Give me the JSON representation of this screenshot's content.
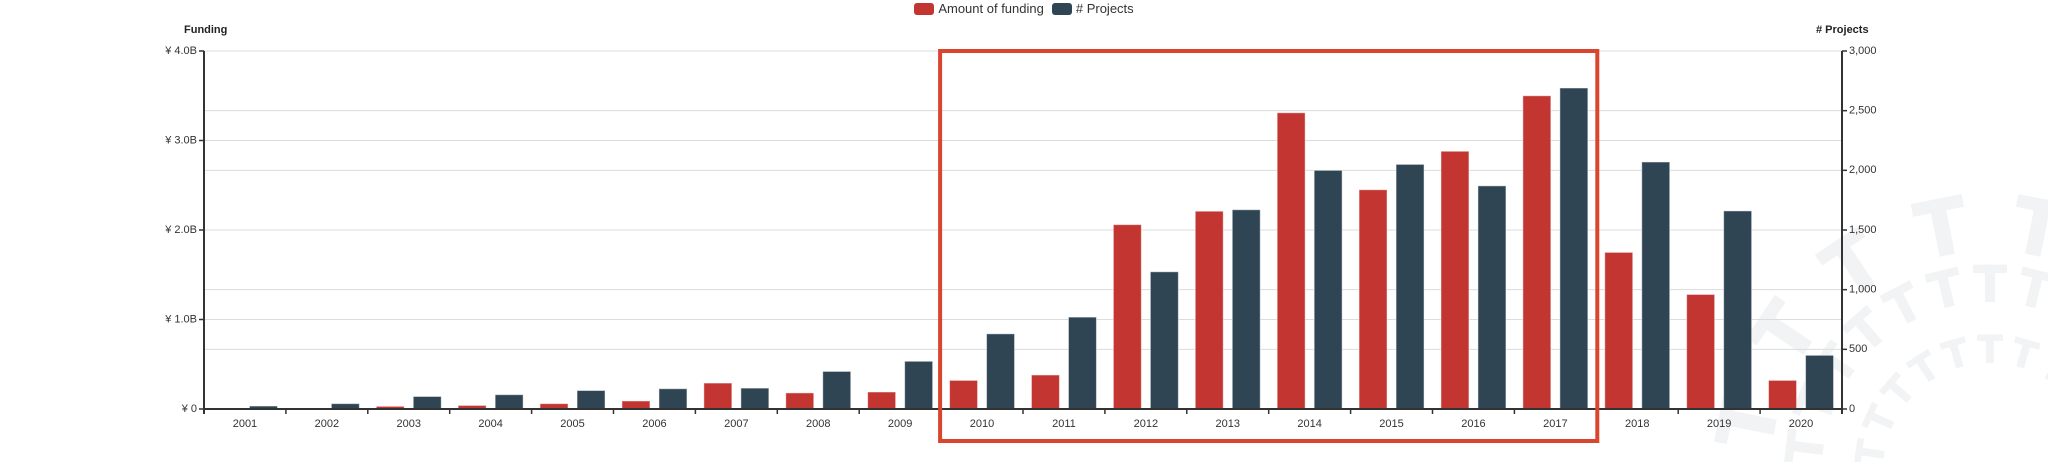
{
  "chart_data": {
    "type": "bar",
    "title": "",
    "categories": [
      "2001",
      "2002",
      "2003",
      "2004",
      "2005",
      "2006",
      "2007",
      "2008",
      "2009",
      "2010",
      "2011",
      "2012",
      "2013",
      "2014",
      "2015",
      "2016",
      "2017",
      "2018",
      "2019",
      "2020"
    ],
    "series": [
      {
        "name": "Amount of funding",
        "axis": "left",
        "color": "#c23531",
        "unit": "¥ billion",
        "values": [
          0.01,
          0.01,
          0.03,
          0.04,
          0.06,
          0.09,
          0.29,
          0.18,
          0.19,
          0.32,
          0.38,
          2.06,
          2.21,
          3.31,
          2.45,
          2.88,
          3.5,
          1.75,
          1.28,
          0.32
        ]
      },
      {
        "name": "# Projects",
        "axis": "right",
        "color": "#2f4554",
        "values": [
          25,
          45,
          105,
          120,
          155,
          170,
          175,
          315,
          400,
          630,
          770,
          1150,
          1670,
          2000,
          2050,
          1870,
          2690,
          2070,
          1660,
          450
        ]
      }
    ],
    "y_left": {
      "label": "Funding",
      "ylim": [
        0,
        4.0
      ],
      "ticks": [
        0,
        1.0,
        2.0,
        3.0,
        4.0
      ],
      "tick_labels": [
        "¥ 0",
        "¥ 1.0B",
        "¥ 2.0B",
        "¥ 3.0B",
        "¥ 4.0B"
      ]
    },
    "y_right": {
      "label": "# Projects",
      "ylim": [
        0,
        3000
      ],
      "ticks": [
        0,
        500,
        1000,
        1500,
        2000,
        2500,
        3000
      ],
      "tick_labels": [
        "0",
        "500",
        "1,000",
        "1,500",
        "2,000",
        "2,500",
        "3,000"
      ]
    },
    "legend": {
      "placement": "top-center",
      "entries": [
        "Amount of funding",
        "# Projects"
      ]
    },
    "grid": true,
    "highlight": {
      "from": "2010",
      "to": "2017",
      "color": "#d9452f"
    }
  }
}
